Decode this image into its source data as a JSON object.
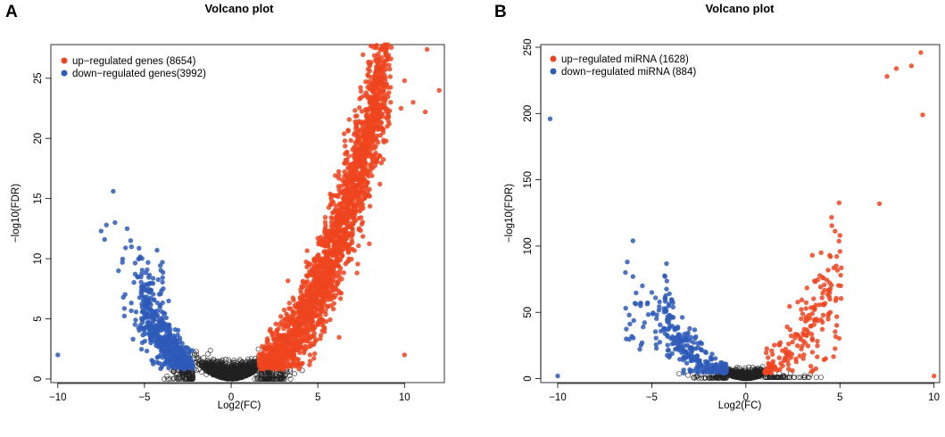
{
  "colors": {
    "up": "#ee4520",
    "down": "#2e5bb8",
    "ns": "#222222"
  },
  "panels": [
    {
      "letter": "A",
      "legend": {
        "up": "up−regulated genes (8654)",
        "down": "down−regulated genes(3992)"
      },
      "chart_data": {
        "type": "scatter",
        "title": "Volcano plot",
        "xlabel": "Log2(FC)",
        "ylabel": "−log10(FDR)",
        "xlim": [
          -10.4,
          12.3
        ],
        "ylim": [
          -0.3,
          27.8
        ],
        "xticks": [
          -10,
          -5,
          0,
          5,
          10
        ],
        "xtick_labels": [
          "−10",
          "−5",
          "0",
          "5",
          "10"
        ],
        "yticks": [
          0,
          5,
          10,
          15,
          20,
          25
        ],
        "ytick_labels": [
          "0",
          "5",
          "10",
          "15",
          "20",
          "25"
        ],
        "model": {
          "up_threshold": 1.6,
          "down_threshold": -2.2,
          "seed": 11
        },
        "series": [
          {
            "name": "up",
            "count": 8654,
            "points": [
              [
                11.3,
                27.4
              ],
              [
                12.0,
                24.0
              ],
              [
                10.0,
                24.8
              ],
              [
                11.2,
                22.2
              ],
              [
                10.5,
                23.0
              ],
              [
                9.8,
                22.5
              ],
              [
                9.2,
                23.0
              ],
              [
                10.0,
                2.0
              ],
              [
                9.0,
                21.0
              ],
              [
                8.5,
                22.0
              ]
            ]
          },
          {
            "name": "down",
            "count": 3992,
            "points": [
              [
                -10.0,
                2.0
              ],
              [
                -6.8,
                15.6
              ],
              [
                -7.5,
                12.3
              ],
              [
                -7.2,
                12.8
              ],
              [
                -6.7,
                13.0
              ],
              [
                -6.0,
                12.5
              ],
              [
                -7.3,
                11.6
              ],
              [
                -6.5,
                9.0
              ],
              [
                -5.8,
                11.5
              ]
            ]
          },
          {
            "name": "ns",
            "points": []
          }
        ]
      }
    },
    {
      "letter": "B",
      "legend": {
        "up": "up−regulated miRNA (1628)",
        "down": "down−regulated miRNA (884)"
      },
      "chart_data": {
        "type": "scatter",
        "title": "Volcano plot",
        "xlabel": "Log2(FC)",
        "ylabel": "−log10(FDR)",
        "xlim": [
          -10.9,
          10.3
        ],
        "ylim": [
          -3,
          252
        ],
        "xticks": [
          -10,
          -5,
          0,
          5,
          10
        ],
        "xtick_labels": [
          "−10",
          "−5",
          "0",
          "5",
          "10"
        ],
        "yticks": [
          0,
          50,
          100,
          150,
          200,
          250
        ],
        "ytick_labels": [
          "0",
          "50",
          "100",
          "150",
          "200",
          "250"
        ],
        "model": {
          "up_threshold": 1.0,
          "down_threshold": -1.0,
          "seed": 29
        },
        "series": [
          {
            "name": "up",
            "count": 1628,
            "points": [
              [
                9.3,
                246
              ],
              [
                8.0,
                234
              ],
              [
                8.8,
                236
              ],
              [
                7.5,
                228
              ],
              [
                9.4,
                199
              ],
              [
                7.1,
                132
              ],
              [
                5.0,
                108
              ],
              [
                10.0,
                2
              ],
              [
                4.5,
                92
              ],
              [
                4.0,
                95
              ],
              [
                4.8,
                85
              ]
            ]
          },
          {
            "name": "down",
            "count": 884,
            "points": [
              [
                -10.4,
                196
              ],
              [
                -10.0,
                2
              ],
              [
                -6.0,
                104
              ],
              [
                -6.3,
                88
              ],
              [
                -6.4,
                80
              ],
              [
                -6.0,
                77
              ],
              [
                -5.5,
                70
              ],
              [
                -5.0,
                65
              ],
              [
                -5.6,
                55
              ],
              [
                -6.2,
                48
              ]
            ]
          },
          {
            "name": "ns",
            "points": []
          }
        ]
      }
    }
  ]
}
